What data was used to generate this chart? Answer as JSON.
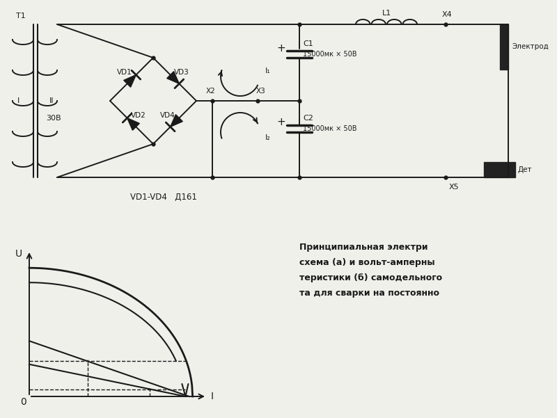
{
  "bg_color": "#f0f0eb",
  "line_color": "#1a1a1a",
  "text_color": "#1a1a1a",
  "circuit_label": "VD1-VD4   Д161",
  "caption_line1": "Принципиальная электри",
  "caption_line2": "схема (а) и вольт-амперны",
  "caption_line3": "теристики (б) самодельного",
  "caption_line4": "та для сварки на постоянно",
  "label_T1": "T1",
  "label_I_prim": "I",
  "label_II_sec": "II",
  "label_30V": "30В",
  "label_VD1": "VD1",
  "label_VD2": "VD2",
  "label_VD3": "VD3",
  "label_VD4": "VD4",
  "label_X2": "X2",
  "label_X3": "X3",
  "label_L1": "L1",
  "label_X4": "X4",
  "label_C1": "C1",
  "label_C1val": "15000мк × 50В",
  "label_C2": "C2",
  "label_C2val": "15000мк × 50В",
  "label_X5": "X5",
  "label_electrode": "Электрод",
  "label_det": "Дет",
  "label_I1": "I₁",
  "label_I2": "I₂",
  "label_U": "U",
  "label_O": "0",
  "label_Iaxis": "I"
}
